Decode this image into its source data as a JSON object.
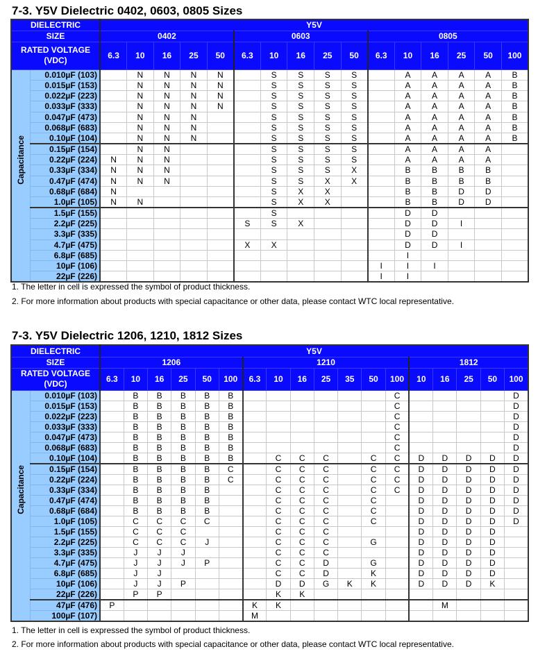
{
  "tables": [
    {
      "title": "7-3. Y5V Dielectric 0402, 0603, 0805 Sizes",
      "dielectric_label": "DIELECTRIC",
      "dielectric": "Y5V",
      "size_label": "SIZE",
      "voltage_label": "RATED VOLTAGE (VDC)",
      "capacitance_label": "Capacitance",
      "sizes": [
        {
          "name": "0402",
          "voltages": [
            "6.3",
            "10",
            "16",
            "25",
            "50"
          ]
        },
        {
          "name": "0603",
          "voltages": [
            "6.3",
            "10",
            "16",
            "25",
            "50"
          ]
        },
        {
          "name": "0805",
          "voltages": [
            "6.3",
            "10",
            "16",
            "25",
            "50",
            "100"
          ]
        }
      ],
      "thick_after": [
        6,
        12
      ],
      "rows": [
        {
          "cap": "0.010µF  (103)",
          "cells": [
            "",
            "N",
            "N",
            "N",
            "N",
            "",
            "S",
            "S",
            "S",
            "S",
            "",
            "A",
            "A",
            "A",
            "A",
            "B"
          ]
        },
        {
          "cap": "0.015µF  (153)",
          "cells": [
            "",
            "N",
            "N",
            "N",
            "N",
            "",
            "S",
            "S",
            "S",
            "S",
            "",
            "A",
            "A",
            "A",
            "A",
            "B"
          ]
        },
        {
          "cap": "0.022µF  (223)",
          "cells": [
            "",
            "N",
            "N",
            "N",
            "N",
            "",
            "S",
            "S",
            "S",
            "S",
            "",
            "A",
            "A",
            "A",
            "A",
            "B"
          ]
        },
        {
          "cap": "0.033µF  (333)",
          "cells": [
            "",
            "N",
            "N",
            "N",
            "N",
            "",
            "S",
            "S",
            "S",
            "S",
            "",
            "A",
            "A",
            "A",
            "A",
            "B"
          ]
        },
        {
          "cap": "0.047µF  (473)",
          "cells": [
            "",
            "N",
            "N",
            "N",
            "",
            "",
            "S",
            "S",
            "S",
            "S",
            "",
            "A",
            "A",
            "A",
            "A",
            "B"
          ]
        },
        {
          "cap": "0.068µF  (683)",
          "cells": [
            "",
            "N",
            "N",
            "N",
            "",
            "",
            "S",
            "S",
            "S",
            "S",
            "",
            "A",
            "A",
            "A",
            "A",
            "B"
          ]
        },
        {
          "cap": "0.10µF  (104)",
          "cells": [
            "",
            "N",
            "N",
            "N",
            "",
            "",
            "S",
            "S",
            "S",
            "S",
            "",
            "A",
            "A",
            "A",
            "A",
            "B"
          ]
        },
        {
          "cap": "0.15µF  (154)",
          "cells": [
            "",
            "N",
            "N",
            "",
            "",
            "",
            "S",
            "S",
            "S",
            "S",
            "",
            "A",
            "A",
            "A",
            "A",
            ""
          ]
        },
        {
          "cap": "0.22µF  (224)",
          "cells": [
            "N",
            "N",
            "N",
            "",
            "",
            "",
            "S",
            "S",
            "S",
            "S",
            "",
            "A",
            "A",
            "A",
            "A",
            ""
          ]
        },
        {
          "cap": "0.33µF  (334)",
          "cells": [
            "N",
            "N",
            "N",
            "",
            "",
            "",
            "S",
            "S",
            "S",
            "X",
            "",
            "B",
            "B",
            "B",
            "B",
            ""
          ]
        },
        {
          "cap": "0.47µF  (474)",
          "cells": [
            "N",
            "N",
            "N",
            "",
            "",
            "",
            "S",
            "S",
            "X",
            "X",
            "",
            "B",
            "B",
            "B",
            "B",
            ""
          ]
        },
        {
          "cap": "0.68µF  (684)",
          "cells": [
            "N",
            "",
            "",
            "",
            "",
            "",
            "S",
            "X",
            "X",
            "",
            "",
            "B",
            "B",
            "D",
            "D",
            ""
          ]
        },
        {
          "cap": "1.0µF  (105)",
          "cells": [
            "N",
            "N",
            "",
            "",
            "",
            "",
            "S",
            "X",
            "X",
            "",
            "",
            "B",
            "B",
            "D",
            "D",
            ""
          ]
        },
        {
          "cap": "1.5µF  (155)",
          "cells": [
            "",
            "",
            "",
            "",
            "",
            "",
            "S",
            "",
            "",
            "",
            "",
            "D",
            "D",
            "",
            "",
            ""
          ]
        },
        {
          "cap": "2.2µF  (225)",
          "cells": [
            "",
            "",
            "",
            "",
            "",
            "S",
            "S",
            "X",
            "",
            "",
            "",
            "D",
            "D",
            "I",
            "",
            ""
          ]
        },
        {
          "cap": "3.3µF  (335)",
          "cells": [
            "",
            "",
            "",
            "",
            "",
            "",
            "",
            "",
            "",
            "",
            "",
            "D",
            "D",
            "",
            "",
            ""
          ]
        },
        {
          "cap": "4.7µF  (475)",
          "cells": [
            "",
            "",
            "",
            "",
            "",
            "X",
            "X",
            "",
            "",
            "",
            "",
            "D",
            "D",
            "I",
            "",
            ""
          ]
        },
        {
          "cap": "6.8µF  (685)",
          "cells": [
            "",
            "",
            "",
            "",
            "",
            "",
            "",
            "",
            "",
            "",
            "",
            "I",
            "",
            "",
            "",
            ""
          ]
        },
        {
          "cap": "10µF  (106)",
          "cells": [
            "",
            "",
            "",
            "",
            "",
            "",
            "",
            "",
            "",
            "",
            "I",
            "I",
            "I",
            "",
            "",
            ""
          ]
        },
        {
          "cap": "22µF  (226)",
          "cells": [
            "",
            "",
            "",
            "",
            "",
            "",
            "",
            "",
            "",
            "",
            "I",
            "I",
            "",
            "",
            "",
            ""
          ]
        }
      ],
      "notes": [
        "1. The letter in cell is expressed the symbol of product thickness.",
        "2. For more information about products with special capacitance or other data, please contact WTC local representative."
      ]
    },
    {
      "title": "7-3. Y5V Dielectric 1206, 1210, 1812 Sizes",
      "dielectric_label": "DIELECTRIC",
      "dielectric": "Y5V",
      "size_label": "SIZE",
      "voltage_label": "RATED VOLTAGE (VDC)",
      "capacitance_label": "Capacitance",
      "sizes": [
        {
          "name": "1206",
          "voltages": [
            "6.3",
            "10",
            "16",
            "25",
            "50",
            "100"
          ]
        },
        {
          "name": "1210",
          "voltages": [
            "6.3",
            "10",
            "16",
            "25",
            "35",
            "50",
            "100"
          ]
        },
        {
          "name": "1812",
          "voltages": [
            "10",
            "16",
            "25",
            "50",
            "100"
          ]
        }
      ],
      "thick_after": [
        6,
        19
      ],
      "rows": [
        {
          "cap": "0.010µF  (103)",
          "cells": [
            "",
            "B",
            "B",
            "B",
            "B",
            "B",
            "",
            "",
            "",
            "",
            "",
            "",
            "C",
            "",
            "",
            "",
            "",
            "D"
          ]
        },
        {
          "cap": "0.015µF  (153)",
          "cells": [
            "",
            "B",
            "B",
            "B",
            "B",
            "B",
            "",
            "",
            "",
            "",
            "",
            "",
            "C",
            "",
            "",
            "",
            "",
            "D"
          ]
        },
        {
          "cap": "0.022µF  (223)",
          "cells": [
            "",
            "B",
            "B",
            "B",
            "B",
            "B",
            "",
            "",
            "",
            "",
            "",
            "",
            "C",
            "",
            "",
            "",
            "",
            "D"
          ]
        },
        {
          "cap": "0.033µF  (333)",
          "cells": [
            "",
            "B",
            "B",
            "B",
            "B",
            "B",
            "",
            "",
            "",
            "",
            "",
            "",
            "C",
            "",
            "",
            "",
            "",
            "D"
          ]
        },
        {
          "cap": "0.047µF  (473)",
          "cells": [
            "",
            "B",
            "B",
            "B",
            "B",
            "B",
            "",
            "",
            "",
            "",
            "",
            "",
            "C",
            "",
            "",
            "",
            "",
            "D"
          ]
        },
        {
          "cap": "0.068µF  (683)",
          "cells": [
            "",
            "B",
            "B",
            "B",
            "B",
            "B",
            "",
            "",
            "",
            "",
            "",
            "",
            "C",
            "",
            "",
            "",
            "",
            "D"
          ]
        },
        {
          "cap": "0.10µF  (104)",
          "cells": [
            "",
            "B",
            "B",
            "B",
            "B",
            "B",
            "",
            "C",
            "C",
            "C",
            "",
            "C",
            "C",
            "D",
            "D",
            "D",
            "D",
            "D"
          ]
        },
        {
          "cap": "0.15µF  (154)",
          "cells": [
            "",
            "B",
            "B",
            "B",
            "B",
            "C",
            "",
            "C",
            "C",
            "C",
            "",
            "C",
            "C",
            "D",
            "D",
            "D",
            "D",
            "D"
          ]
        },
        {
          "cap": "0.22µF  (224)",
          "cells": [
            "",
            "B",
            "B",
            "B",
            "B",
            "C",
            "",
            "C",
            "C",
            "C",
            "",
            "C",
            "C",
            "D",
            "D",
            "D",
            "D",
            "D"
          ]
        },
        {
          "cap": "0.33µF  (334)",
          "cells": [
            "",
            "B",
            "B",
            "B",
            "B",
            "",
            "",
            "C",
            "C",
            "C",
            "",
            "C",
            "C",
            "D",
            "D",
            "D",
            "D",
            "D"
          ]
        },
        {
          "cap": "0.47µF  (474)",
          "cells": [
            "",
            "B",
            "B",
            "B",
            "B",
            "",
            "",
            "C",
            "C",
            "C",
            "",
            "C",
            "",
            "D",
            "D",
            "D",
            "D",
            "D"
          ]
        },
        {
          "cap": "0.68µF  (684)",
          "cells": [
            "",
            "B",
            "B",
            "B",
            "B",
            "",
            "",
            "C",
            "C",
            "C",
            "",
            "C",
            "",
            "D",
            "D",
            "D",
            "D",
            "D"
          ]
        },
        {
          "cap": "1.0µF  (105)",
          "cells": [
            "",
            "C",
            "C",
            "C",
            "C",
            "",
            "",
            "C",
            "C",
            "C",
            "",
            "C",
            "",
            "D",
            "D",
            "D",
            "D",
            "D"
          ]
        },
        {
          "cap": "1.5µF  (155)",
          "cells": [
            "",
            "C",
            "C",
            "C",
            "",
            "",
            "",
            "C",
            "C",
            "C",
            "",
            "",
            "",
            "D",
            "D",
            "D",
            "D",
            ""
          ]
        },
        {
          "cap": "2.2µF  (225)",
          "cells": [
            "",
            "C",
            "C",
            "C",
            "J",
            "",
            "",
            "C",
            "C",
            "C",
            "",
            "G",
            "",
            "D",
            "D",
            "D",
            "D",
            ""
          ]
        },
        {
          "cap": "3.3µF  (335)",
          "cells": [
            "",
            "J",
            "J",
            "J",
            "",
            "",
            "",
            "C",
            "C",
            "C",
            "",
            "",
            "",
            "D",
            "D",
            "D",
            "D",
            ""
          ]
        },
        {
          "cap": "4.7µF  (475)",
          "cells": [
            "",
            "J",
            "J",
            "J",
            "P",
            "",
            "",
            "C",
            "C",
            "D",
            "",
            "G",
            "",
            "D",
            "D",
            "D",
            "D",
            ""
          ]
        },
        {
          "cap": "6.8µF  (685)",
          "cells": [
            "",
            "J",
            "J",
            "",
            "",
            "",
            "",
            "C",
            "C",
            "D",
            "",
            "K",
            "",
            "D",
            "D",
            "D",
            "D",
            ""
          ]
        },
        {
          "cap": "10µF  (106)",
          "cells": [
            "",
            "J",
            "J",
            "P",
            "",
            "",
            "",
            "D",
            "D",
            "G",
            "K",
            "K",
            "",
            "D",
            "D",
            "D",
            "K",
            ""
          ]
        },
        {
          "cap": "22µF  (226)",
          "cells": [
            "",
            "P",
            "P",
            "",
            "",
            "",
            "",
            "K",
            "K",
            "",
            "",
            "",
            "",
            "",
            "",
            "",
            "",
            ""
          ]
        },
        {
          "cap": "47µF  (476)",
          "cells": [
            "P",
            "",
            "",
            "",
            "",
            "",
            "K",
            "K",
            "",
            "",
            "",
            "",
            "",
            "",
            "M",
            "",
            "",
            ""
          ]
        },
        {
          "cap": "100µF  (107)",
          "cells": [
            "",
            "",
            "",
            "",
            "",
            "",
            "M",
            "",
            "",
            "",
            "",
            "",
            "",
            "",
            "",
            "",
            "",
            ""
          ]
        }
      ],
      "notes": [
        "1. The letter in cell is expressed the symbol of product thickness.",
        "2. For more information about products with special capacitance or other data, please contact WTC local representative."
      ]
    }
  ]
}
